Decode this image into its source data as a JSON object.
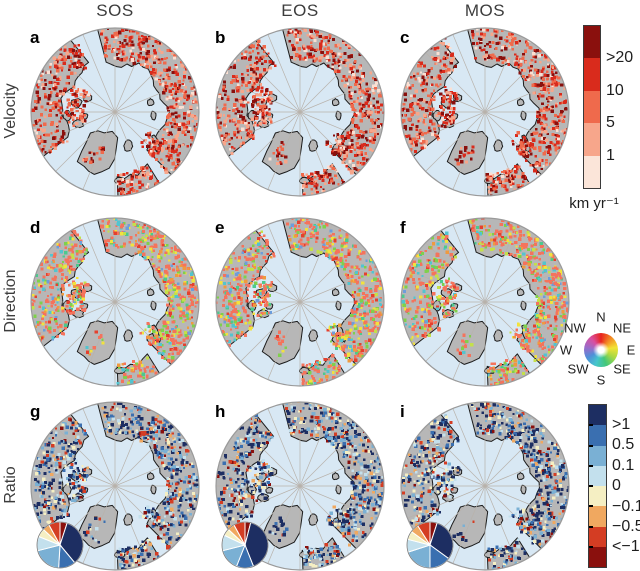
{
  "figure": {
    "column_titles": [
      "SOS",
      "EOS",
      "MOS"
    ],
    "row_labels": [
      "Velocity",
      "Direction",
      "Ratio"
    ],
    "panel_letters": [
      "a",
      "b",
      "c",
      "d",
      "e",
      "f",
      "g",
      "h",
      "i"
    ]
  },
  "legends": {
    "velocity": {
      "tick_labels": [
        ">20",
        "10",
        "5",
        "1"
      ],
      "unit": "km yr⁻¹",
      "colors": [
        "#8a100d",
        "#d92b1c",
        "#ef6a4c",
        "#f7a68b",
        "#fbe5d9"
      ]
    },
    "direction": {
      "compass_labels": [
        "N",
        "NE",
        "E",
        "SE",
        "S",
        "SW",
        "W",
        "NW"
      ],
      "wheel_hues": [
        "#e8241f",
        "#f28a24",
        "#f2e334",
        "#a8d943",
        "#43c77a",
        "#45c6cc",
        "#4f8fd9",
        "#9a6cc9",
        "#d94fa0"
      ]
    },
    "ratio": {
      "tick_labels": [
        ">1",
        "0.5",
        "0.1",
        "0",
        "−0.1",
        "−0.5",
        "<−1"
      ],
      "colors": [
        "#1d2e62",
        "#3a6fb0",
        "#7ab0d4",
        "#c3e0ed",
        "#f5efc3",
        "#f0a860",
        "#d43d23",
        "#8a100d"
      ]
    }
  },
  "map_style": {
    "ocean": "#d8e8f4",
    "land": "#b7b7b7",
    "coastline": "#1b1b1b",
    "graticule": "#b8b2ab",
    "rim": "#9a9a9a"
  },
  "palettes": {
    "velocity": [
      [
        "#8a100d",
        0.2
      ],
      [
        "#d92b1c",
        0.28
      ],
      [
        "#ef6a4c",
        0.26
      ],
      [
        "#f7a68b",
        0.17
      ],
      [
        "#fbdfd2",
        0.09
      ]
    ],
    "direction": [
      [
        "#f4735c",
        0.46
      ],
      [
        "#ef9a3f",
        0.07
      ],
      [
        "#f2e23d",
        0.1
      ],
      [
        "#c4e04a",
        0.07
      ],
      [
        "#7fd04c",
        0.1
      ],
      [
        "#4cc98e",
        0.04
      ],
      [
        "#52c4cf",
        0.06
      ],
      [
        "#6d9ddb",
        0.03
      ],
      [
        "#e5402e",
        0.07
      ]
    ],
    "ratio": [
      [
        "#1d2e62",
        0.33
      ],
      [
        "#3a6fb0",
        0.14
      ],
      [
        "#7ab0d4",
        0.13
      ],
      [
        "#c3e0ed",
        0.1
      ],
      [
        "#f5efc3",
        0.1
      ],
      [
        "#f0a860",
        0.06
      ],
      [
        "#d43d23",
        0.09
      ],
      [
        "#8a100d",
        0.05
      ]
    ]
  },
  "pies": {
    "g": [
      [
        "#8a100d",
        0.05
      ],
      [
        "#1d2e62",
        0.34
      ],
      [
        "#3a6fb0",
        0.12
      ],
      [
        "#7ab0d4",
        0.2
      ],
      [
        "#c3e0ed",
        0.1
      ],
      [
        "#f5efc3",
        0.06
      ],
      [
        "#f0a860",
        0.05
      ],
      [
        "#d43d23",
        0.08
      ]
    ],
    "h": [
      [
        "#8a100d",
        0.04
      ],
      [
        "#1d2e62",
        0.4
      ],
      [
        "#3a6fb0",
        0.12
      ],
      [
        "#7ab0d4",
        0.15
      ],
      [
        "#c3e0ed",
        0.11
      ],
      [
        "#f5efc3",
        0.05
      ],
      [
        "#f0a860",
        0.05
      ],
      [
        "#d43d23",
        0.08
      ]
    ],
    "i": [
      [
        "#8a100d",
        0.05
      ],
      [
        "#1d2e62",
        0.3
      ],
      [
        "#3a6fb0",
        0.15
      ],
      [
        "#7ab0d4",
        0.2
      ],
      [
        "#c3e0ed",
        0.09
      ],
      [
        "#f5efc3",
        0.06
      ],
      [
        "#f0a860",
        0.06
      ],
      [
        "#d43d23",
        0.09
      ]
    ]
  }
}
